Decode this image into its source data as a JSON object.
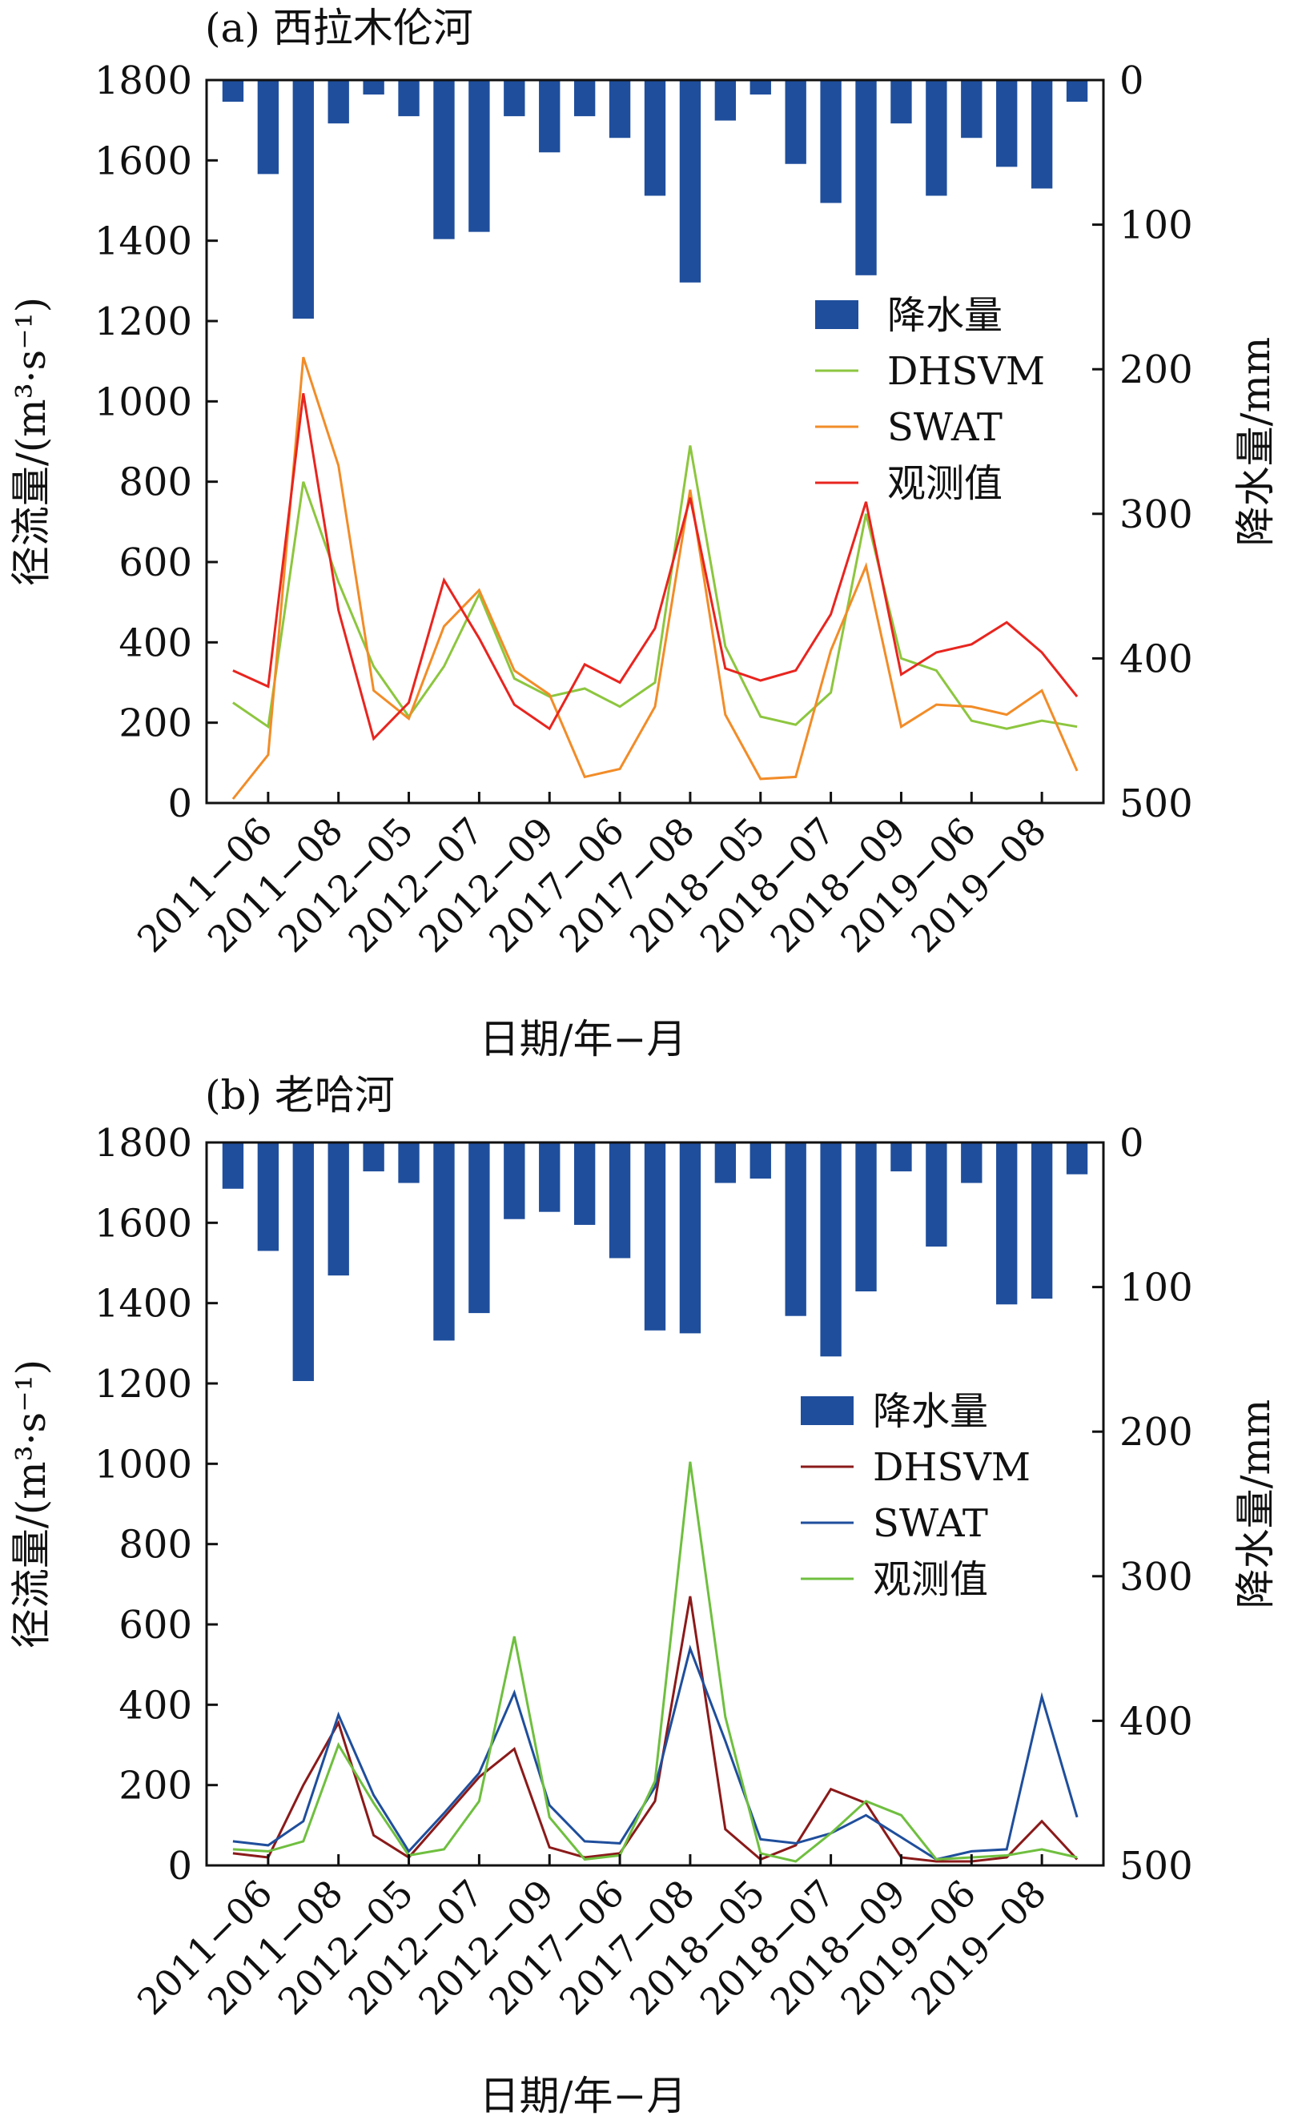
{
  "chart_data": [
    {
      "type": "bar+line",
      "panel_title": "(a) 西拉木伦河",
      "xlabel": "日期/年−月",
      "ylabel_left": "径流量/(m³·s⁻¹)",
      "ylabel_right": "降水量/mm",
      "ylim_left": [
        0,
        1800
      ],
      "ylim_right_reversed": [
        0,
        500
      ],
      "yticks_left": [
        "0",
        "200",
        "400",
        "600",
        "800",
        "1000",
        "1200",
        "1400",
        "1600",
        "1800"
      ],
      "yticks_right": [
        "0",
        "100",
        "200",
        "300",
        "400",
        "500"
      ],
      "xtick_labels": [
        "2011−06",
        "2011−08",
        "2012−05",
        "2012−07",
        "2012−09",
        "2017−06",
        "2017−08",
        "2018−05",
        "2018−07",
        "2018−09",
        "2019−06",
        "2019−08"
      ],
      "precipitation": {
        "name": "降水量",
        "color": "#1f4e9c",
        "values": [
          15,
          65,
          165,
          30,
          10,
          25,
          110,
          105,
          25,
          50,
          25,
          40,
          80,
          140,
          28,
          10,
          58,
          85,
          135,
          30,
          80,
          40,
          60,
          75,
          15
        ]
      },
      "series": [
        {
          "name": "DHSVM",
          "color": "#8dc63f",
          "values": [
            250,
            190,
            800,
            550,
            340,
            215,
            340,
            520,
            310,
            265,
            285,
            240,
            300,
            890,
            390,
            215,
            195,
            275,
            720,
            360,
            330,
            205,
            185,
            205,
            190
          ]
        },
        {
          "name": "SWAT",
          "color": "#f28c28",
          "values": [
            10,
            120,
            1110,
            840,
            280,
            210,
            440,
            530,
            330,
            270,
            65,
            85,
            240,
            780,
            220,
            60,
            65,
            380,
            590,
            190,
            245,
            240,
            220,
            280,
            80
          ]
        },
        {
          "name": "观测值",
          "color": "#e8251f",
          "values": [
            330,
            290,
            1020,
            480,
            160,
            250,
            555,
            410,
            245,
            185,
            345,
            300,
            435,
            760,
            335,
            305,
            330,
            470,
            750,
            320,
            375,
            395,
            450,
            375,
            265
          ]
        }
      ]
    },
    {
      "type": "bar+line",
      "panel_title": "(b) 老哈河",
      "xlabel": "日期/年−月",
      "ylabel_left": "径流量/(m³·s⁻¹)",
      "ylabel_right": "降水量/mm",
      "ylim_left": [
        0,
        1800
      ],
      "ylim_right_reversed": [
        0,
        500
      ],
      "yticks_left": [
        "0",
        "200",
        "400",
        "600",
        "800",
        "1000",
        "1200",
        "1400",
        "1600",
        "1800"
      ],
      "yticks_right": [
        "0",
        "100",
        "200",
        "300",
        "400",
        "500"
      ],
      "xtick_labels": [
        "2011−06",
        "2011−08",
        "2012−05",
        "2012−07",
        "2012−09",
        "2017−06",
        "2017−08",
        "2018−05",
        "2018−07",
        "2018−09",
        "2019−06",
        "2019−08"
      ],
      "precipitation": {
        "name": "降水量",
        "color": "#1f4e9c",
        "values": [
          32,
          75,
          165,
          92,
          20,
          28,
          137,
          118,
          53,
          48,
          57,
          80,
          130,
          132,
          28,
          25,
          120,
          148,
          103,
          20,
          72,
          28,
          112,
          108,
          22
        ]
      },
      "series": [
        {
          "name": "DHSVM",
          "color": "#8b1a1a",
          "values": [
            30,
            20,
            200,
            355,
            75,
            20,
            120,
            220,
            290,
            45,
            20,
            30,
            160,
            670,
            90,
            15,
            50,
            190,
            155,
            20,
            10,
            10,
            20,
            110,
            15
          ]
        },
        {
          "name": "SWAT",
          "color": "#1f4e9c",
          "values": [
            60,
            50,
            110,
            375,
            175,
            35,
            130,
            230,
            430,
            150,
            60,
            55,
            195,
            540,
            310,
            65,
            55,
            80,
            125,
            70,
            15,
            35,
            40,
            420,
            120
          ]
        },
        {
          "name": "观测值",
          "color": "#6fbf3f",
          "values": [
            40,
            35,
            60,
            300,
            155,
            25,
            40,
            160,
            570,
            120,
            15,
            25,
            210,
            1005,
            370,
            30,
            10,
            80,
            160,
            125,
            15,
            20,
            25,
            40,
            20
          ]
        }
      ]
    }
  ]
}
